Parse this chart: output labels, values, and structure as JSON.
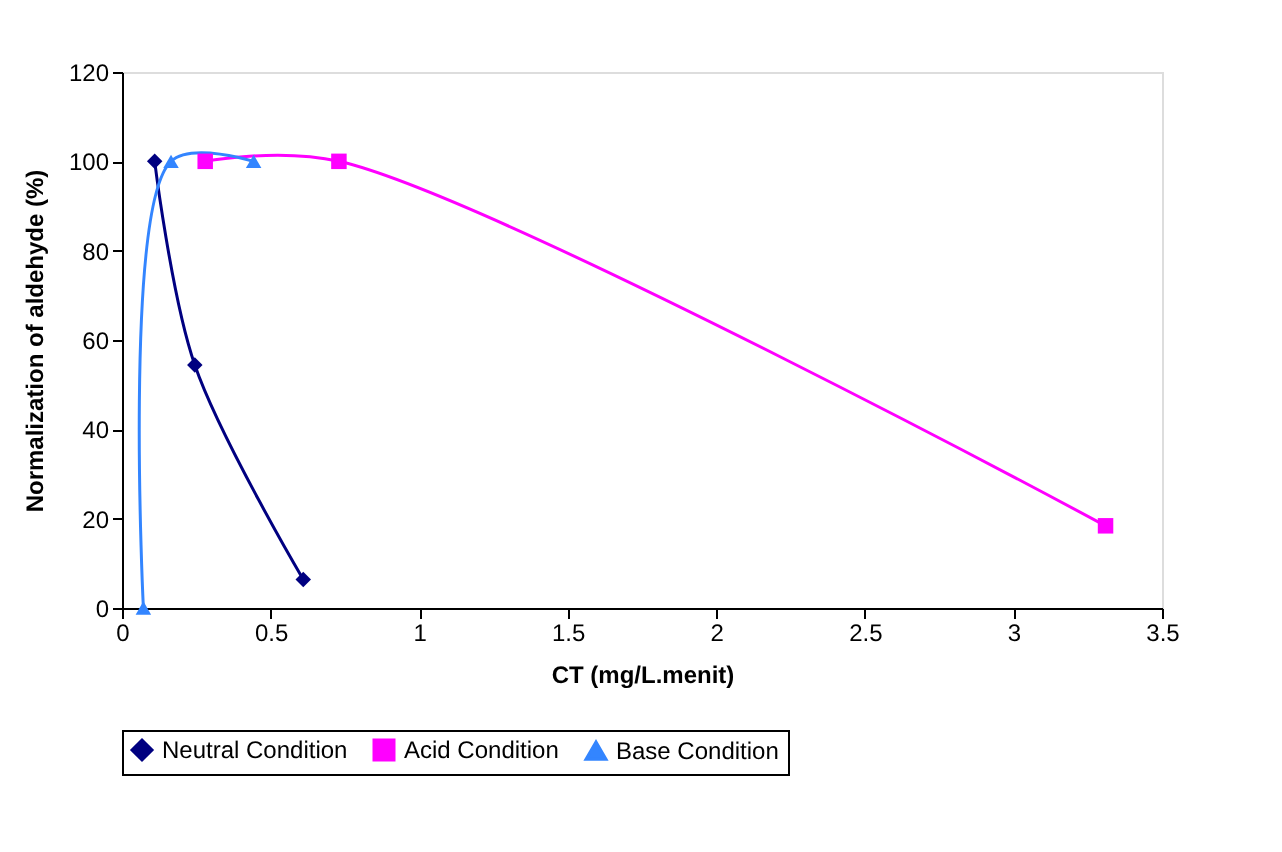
{
  "chart_data": {
    "type": "line",
    "xlabel": "CT (mg/L.menit)",
    "ylabel": "Normalization of aldehyde (%)",
    "xlim": [
      0,
      3.5
    ],
    "xticks": [
      0,
      0.5,
      1,
      1.5,
      2,
      2.5,
      3,
      3.5
    ],
    "ylim": [
      0,
      120
    ],
    "yticks": [
      0,
      20,
      40,
      60,
      80,
      100,
      120
    ],
    "grid": false,
    "legend": "bottom",
    "series": [
      {
        "name": "Neutral Condition",
        "color": "#000080",
        "marker": "diamond",
        "x": [
          0.11,
          0.245,
          0.61
        ],
        "values": [
          100,
          54.4,
          6.4
        ]
      },
      {
        "name": "Acid Condition",
        "color": "#ff00ff",
        "marker": "square",
        "x": [
          0.28,
          0.73,
          3.31
        ],
        "values": [
          100,
          100,
          18.4
        ]
      },
      {
        "name": "Base Condition",
        "color": "#3385ff",
        "marker": "triangle",
        "x": [
          0.072,
          0.165,
          0.443
        ],
        "values": [
          0,
          100,
          100
        ]
      }
    ]
  }
}
